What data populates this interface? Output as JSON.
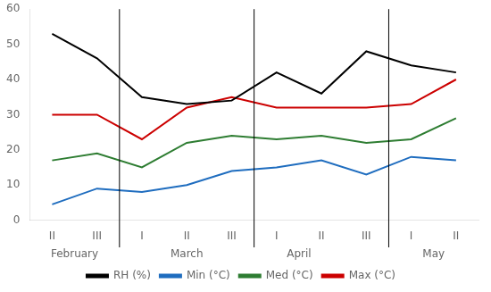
{
  "chart_data": {
    "type": "line",
    "categories": [
      "II",
      "III",
      "I",
      "II",
      "III",
      "I",
      "II",
      "III",
      "I",
      "II"
    ],
    "series": [
      {
        "name": "RH (%)",
        "color": "#000000",
        "values": [
          53,
          46,
          35,
          33,
          34,
          42,
          36,
          48,
          44,
          42
        ]
      },
      {
        "name": "Min (°C)",
        "color": "#1f6dbf",
        "values": [
          4.5,
          9,
          8,
          10,
          14,
          15,
          17,
          13,
          18,
          17
        ]
      },
      {
        "name": "Med (°C)",
        "color": "#2e7d32",
        "values": [
          17,
          19,
          15,
          22,
          24,
          23,
          24,
          22,
          23,
          29
        ]
      },
      {
        "name": "Max (°C)",
        "color": "#cc0000",
        "values": [
          30,
          30,
          23,
          32,
          35,
          32,
          32,
          32,
          33,
          40
        ]
      }
    ],
    "ylim": [
      0,
      60
    ],
    "yticks": [
      0,
      10,
      20,
      30,
      40,
      50,
      60
    ],
    "grid": false,
    "legend": "bottom",
    "annotations": [
      {
        "type": "text",
        "text": "February",
        "x": 0.5
      },
      {
        "type": "text",
        "text": "March",
        "x": 3.0
      },
      {
        "type": "text",
        "text": "April",
        "x": 5.5
      },
      {
        "type": "text",
        "text": "May",
        "x": 8.5
      },
      {
        "type": "vline",
        "x": 1.5
      },
      {
        "type": "vline",
        "x": 4.5
      },
      {
        "type": "vline",
        "x": 7.5
      }
    ]
  }
}
